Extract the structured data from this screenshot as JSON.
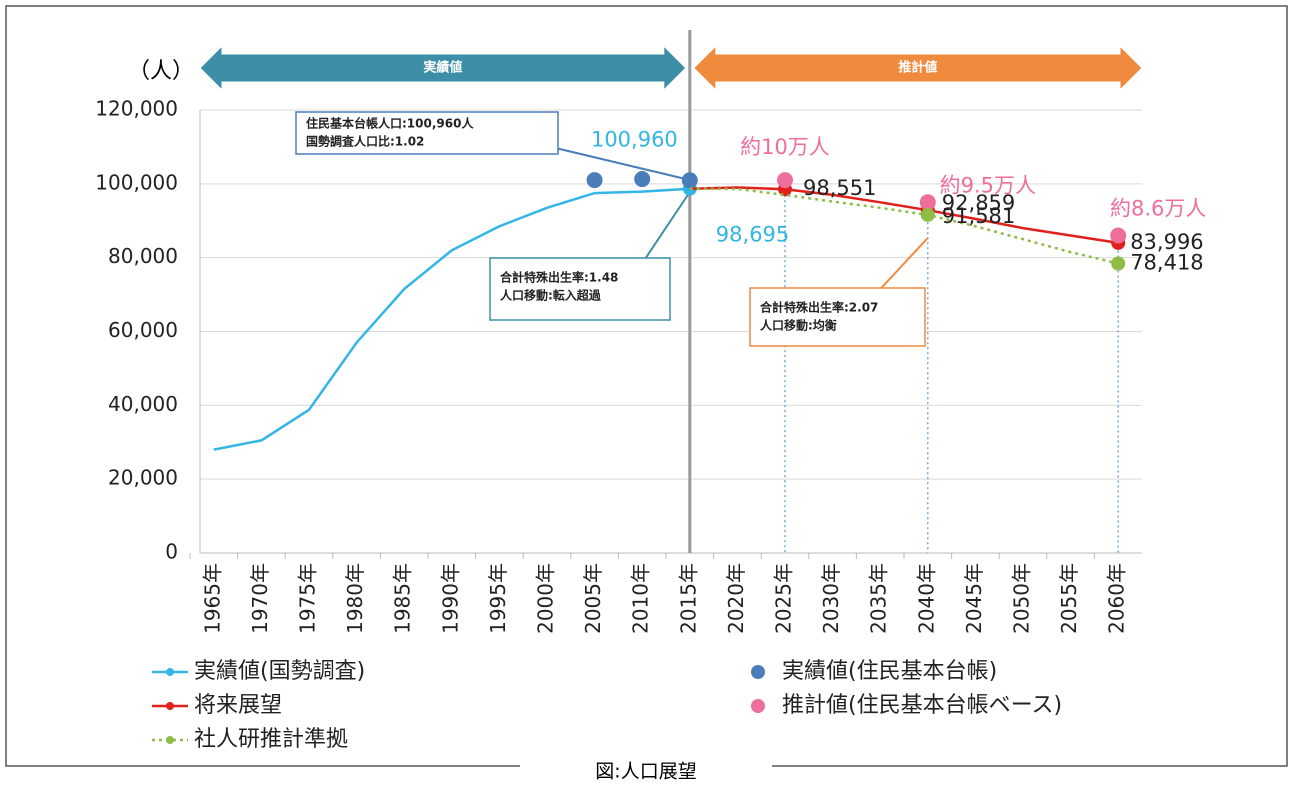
{
  "chart_data": {
    "type": "line",
    "y_unit": "（人）",
    "caption": "図:人口展望",
    "periods": [
      {
        "label": "実績値",
        "color": "#3d8fa8"
      },
      {
        "label": "推計値",
        "color": "#f08a3c"
      }
    ],
    "categories": [
      "1965年",
      "1970年",
      "1975年",
      "1980年",
      "1985年",
      "1990年",
      "1995年",
      "2000年",
      "2005年",
      "2010年",
      "2015年",
      "2020年",
      "2025年",
      "2030年",
      "2035年",
      "2040年",
      "2045年",
      "2050年",
      "2055年",
      "2060年"
    ],
    "ylim": [
      0,
      120000
    ],
    "yticks": [
      0,
      {
        "value": 20000,
        "label": "20,000"
      },
      {
        "value": 40000,
        "label": "40,000"
      },
      {
        "value": 60000,
        "label": "60,000"
      },
      {
        "value": 80000,
        "label": "80,000"
      },
      {
        "value": 100000,
        "label": "100,000"
      },
      {
        "value": 120000,
        "label": "120,000"
      }
    ],
    "grid": true,
    "series": [
      {
        "name": "実績値(国勢調査)",
        "type": "line",
        "color": "#33b5e5",
        "values": [
          28000,
          30500,
          38800,
          57000,
          71500,
          82000,
          88500,
          93500,
          97500,
          97900,
          98695,
          null,
          null,
          null,
          null,
          null,
          null,
          null,
          null,
          null
        ],
        "value_labels": [
          null,
          null,
          null,
          null,
          null,
          null,
          null,
          null,
          null,
          null,
          "98,695",
          null,
          null,
          null,
          null,
          null,
          null,
          null,
          null,
          null
        ]
      },
      {
        "name": "実績値(住民基本台帳)",
        "type": "scatter",
        "color": "#4a7ebb",
        "values": [
          null,
          null,
          null,
          null,
          null,
          null,
          null,
          null,
          101000,
          101300,
          100960,
          null,
          null,
          null,
          null,
          null,
          null,
          null,
          null,
          null
        ],
        "value_labels": [
          null,
          null,
          null,
          null,
          null,
          null,
          null,
          null,
          null,
          null,
          "100,960",
          null,
          null,
          null,
          null,
          null,
          null,
          null,
          null,
          null
        ]
      },
      {
        "name": "将来展望",
        "type": "line",
        "color": "#e0201b",
        "values": [
          null,
          null,
          null,
          null,
          null,
          null,
          null,
          null,
          null,
          null,
          98695,
          99000,
          98551,
          97000,
          95000,
          92859,
          90500,
          88000,
          86000,
          83996
        ],
        "value_labels": [
          null,
          null,
          null,
          null,
          null,
          null,
          null,
          null,
          null,
          null,
          null,
          null,
          "98,551",
          null,
          null,
          "92,859",
          null,
          null,
          null,
          "83,996"
        ]
      },
      {
        "name": "推計値(住民基本台帳ベース)",
        "type": "scatter",
        "color": "#ee6f9b",
        "values": [
          null,
          null,
          null,
          null,
          null,
          null,
          null,
          null,
          null,
          null,
          null,
          null,
          101000,
          null,
          null,
          95000,
          null,
          null,
          null,
          86000
        ],
        "value_labels": [
          null,
          null,
          null,
          null,
          null,
          null,
          null,
          null,
          null,
          null,
          null,
          null,
          "約10万人",
          null,
          null,
          "約9.5万人",
          null,
          null,
          null,
          "約8.6万人"
        ]
      },
      {
        "name": "社人研推計準拠",
        "type": "line",
        "dotted": true,
        "color": "#8fbc45",
        "values": [
          null,
          null,
          null,
          null,
          null,
          null,
          null,
          null,
          null,
          null,
          98695,
          98600,
          97000,
          95200,
          93500,
          91581,
          88500,
          85000,
          81500,
          78418
        ],
        "value_labels": [
          null,
          null,
          null,
          null,
          null,
          null,
          null,
          null,
          null,
          null,
          null,
          null,
          null,
          null,
          null,
          "91,581",
          null,
          null,
          null,
          "78,418"
        ]
      }
    ],
    "annotations": [
      {
        "lines": [
          "住民基本台帳人口:100,960人",
          "国勢調査人口比:1.02"
        ]
      },
      {
        "lines": [
          "合計特殊出生率:1.48",
          "人口移動:転入超過"
        ]
      },
      {
        "lines": [
          "合計特殊出生率:2.07",
          "人口移動:均衡"
        ]
      }
    ]
  }
}
